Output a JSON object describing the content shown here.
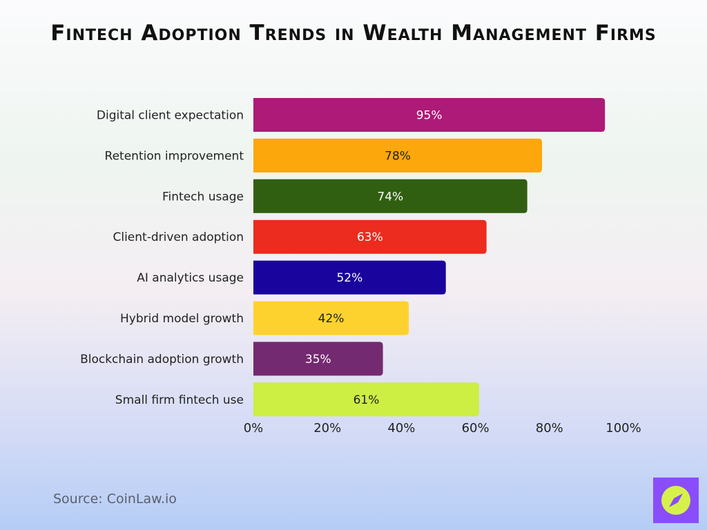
{
  "chart_data": {
    "type": "bar",
    "orientation": "horizontal",
    "title": "Fintech Adoption Trends in Wealth Management Firms",
    "categories": [
      "Digital client expectation",
      "Retention improvement",
      "Fintech usage",
      "Client-driven adoption",
      "AI analytics usage",
      "Hybrid model growth",
      "Blockchain adoption growth",
      "Small firm fintech use"
    ],
    "values": [
      95,
      78,
      74,
      63,
      52,
      42,
      35,
      61
    ],
    "data_labels": [
      "95%",
      "78%",
      "74%",
      "63%",
      "52%",
      "42%",
      "35%",
      "61%"
    ],
    "colors": [
      "#ad1a78",
      "#fca70c",
      "#305f12",
      "#eb2c1f",
      "#19049e",
      "#fed22e",
      "#742a70",
      "#cdee43"
    ],
    "label_colors": [
      "#ffffff",
      "#222222",
      "#ffffff",
      "#ffffff",
      "#ffffff",
      "#222222",
      "#ffffff",
      "#222222"
    ],
    "xlim": [
      0,
      100
    ],
    "xticks": [
      0,
      20,
      40,
      60,
      80,
      100
    ],
    "xtick_labels": [
      "0%",
      "20%",
      "40%",
      "60%",
      "80%",
      "100%"
    ],
    "grid": false,
    "legend": "none"
  },
  "source": "Source: CoinLaw.io",
  "brand": {
    "logo_bg": "#8a4dfb",
    "logo_fg": "#d6f24a",
    "icon": "compass-icon"
  }
}
